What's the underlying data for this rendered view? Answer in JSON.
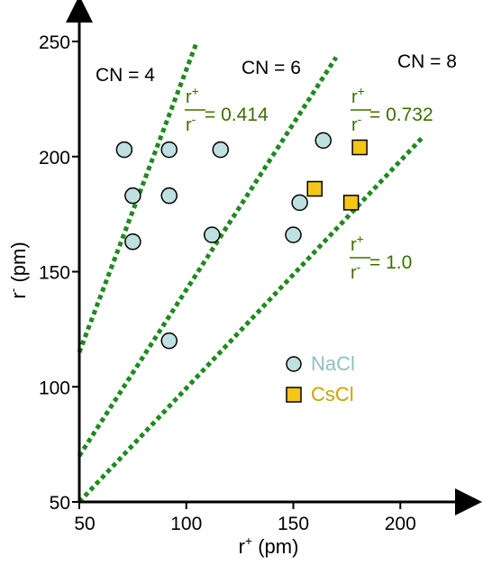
{
  "chart_data": {
    "type": "scatter",
    "xlabel": "r",
    "xlabel_sup": "+",
    "xlabel_unit": "(pm)",
    "ylabel": "r",
    "ylabel_sup": "-",
    "ylabel_unit": "(pm)",
    "xlim": [
      50,
      210
    ],
    "ylim": [
      50,
      250
    ],
    "x_ticks": [
      "50",
      "100",
      "150",
      "200"
    ],
    "y_ticks": [
      "50",
      "100",
      "150",
      "200",
      "250"
    ],
    "grid": false,
    "series": [
      {
        "name": "NaCl",
        "color": "#bfe0e0",
        "marker": "circle",
        "points": [
          {
            "x": 71,
            "y": 203
          },
          {
            "x": 92,
            "y": 203
          },
          {
            "x": 116,
            "y": 203
          },
          {
            "x": 75,
            "y": 183
          },
          {
            "x": 92,
            "y": 183
          },
          {
            "x": 75,
            "y": 163
          },
          {
            "x": 112,
            "y": 166
          },
          {
            "x": 92,
            "y": 120
          },
          {
            "x": 164,
            "y": 207
          },
          {
            "x": 153,
            "y": 180
          },
          {
            "x": 150,
            "y": 166
          }
        ]
      },
      {
        "name": "CsCl",
        "color": "#f5c518",
        "marker": "square",
        "points": [
          {
            "x": 181,
            "y": 204
          },
          {
            "x": 160,
            "y": 186
          },
          {
            "x": 177,
            "y": 180
          }
        ]
      }
    ],
    "ratio_lines": [
      {
        "ratio": 0.414,
        "numerator": "r",
        "numerator_sup": "+",
        "denominator": "r",
        "denominator_sup": "-",
        "value_text": "= 0.414"
      },
      {
        "ratio": 0.732,
        "numerator": "r",
        "numerator_sup": "+",
        "denominator": "r",
        "denominator_sup": "-",
        "value_text": "= 0.732"
      },
      {
        "ratio": 1.0,
        "numerator": "r",
        "numerator_sup": "+",
        "denominator": "r",
        "denominator_sup": "-",
        "value_text": "= 1.0"
      }
    ],
    "line_color": "#1f8a1f",
    "region_labels": [
      "CN = 4",
      "CN = 6",
      "CN = 8"
    ],
    "legend": {
      "placement": "inside-lower-right"
    }
  }
}
